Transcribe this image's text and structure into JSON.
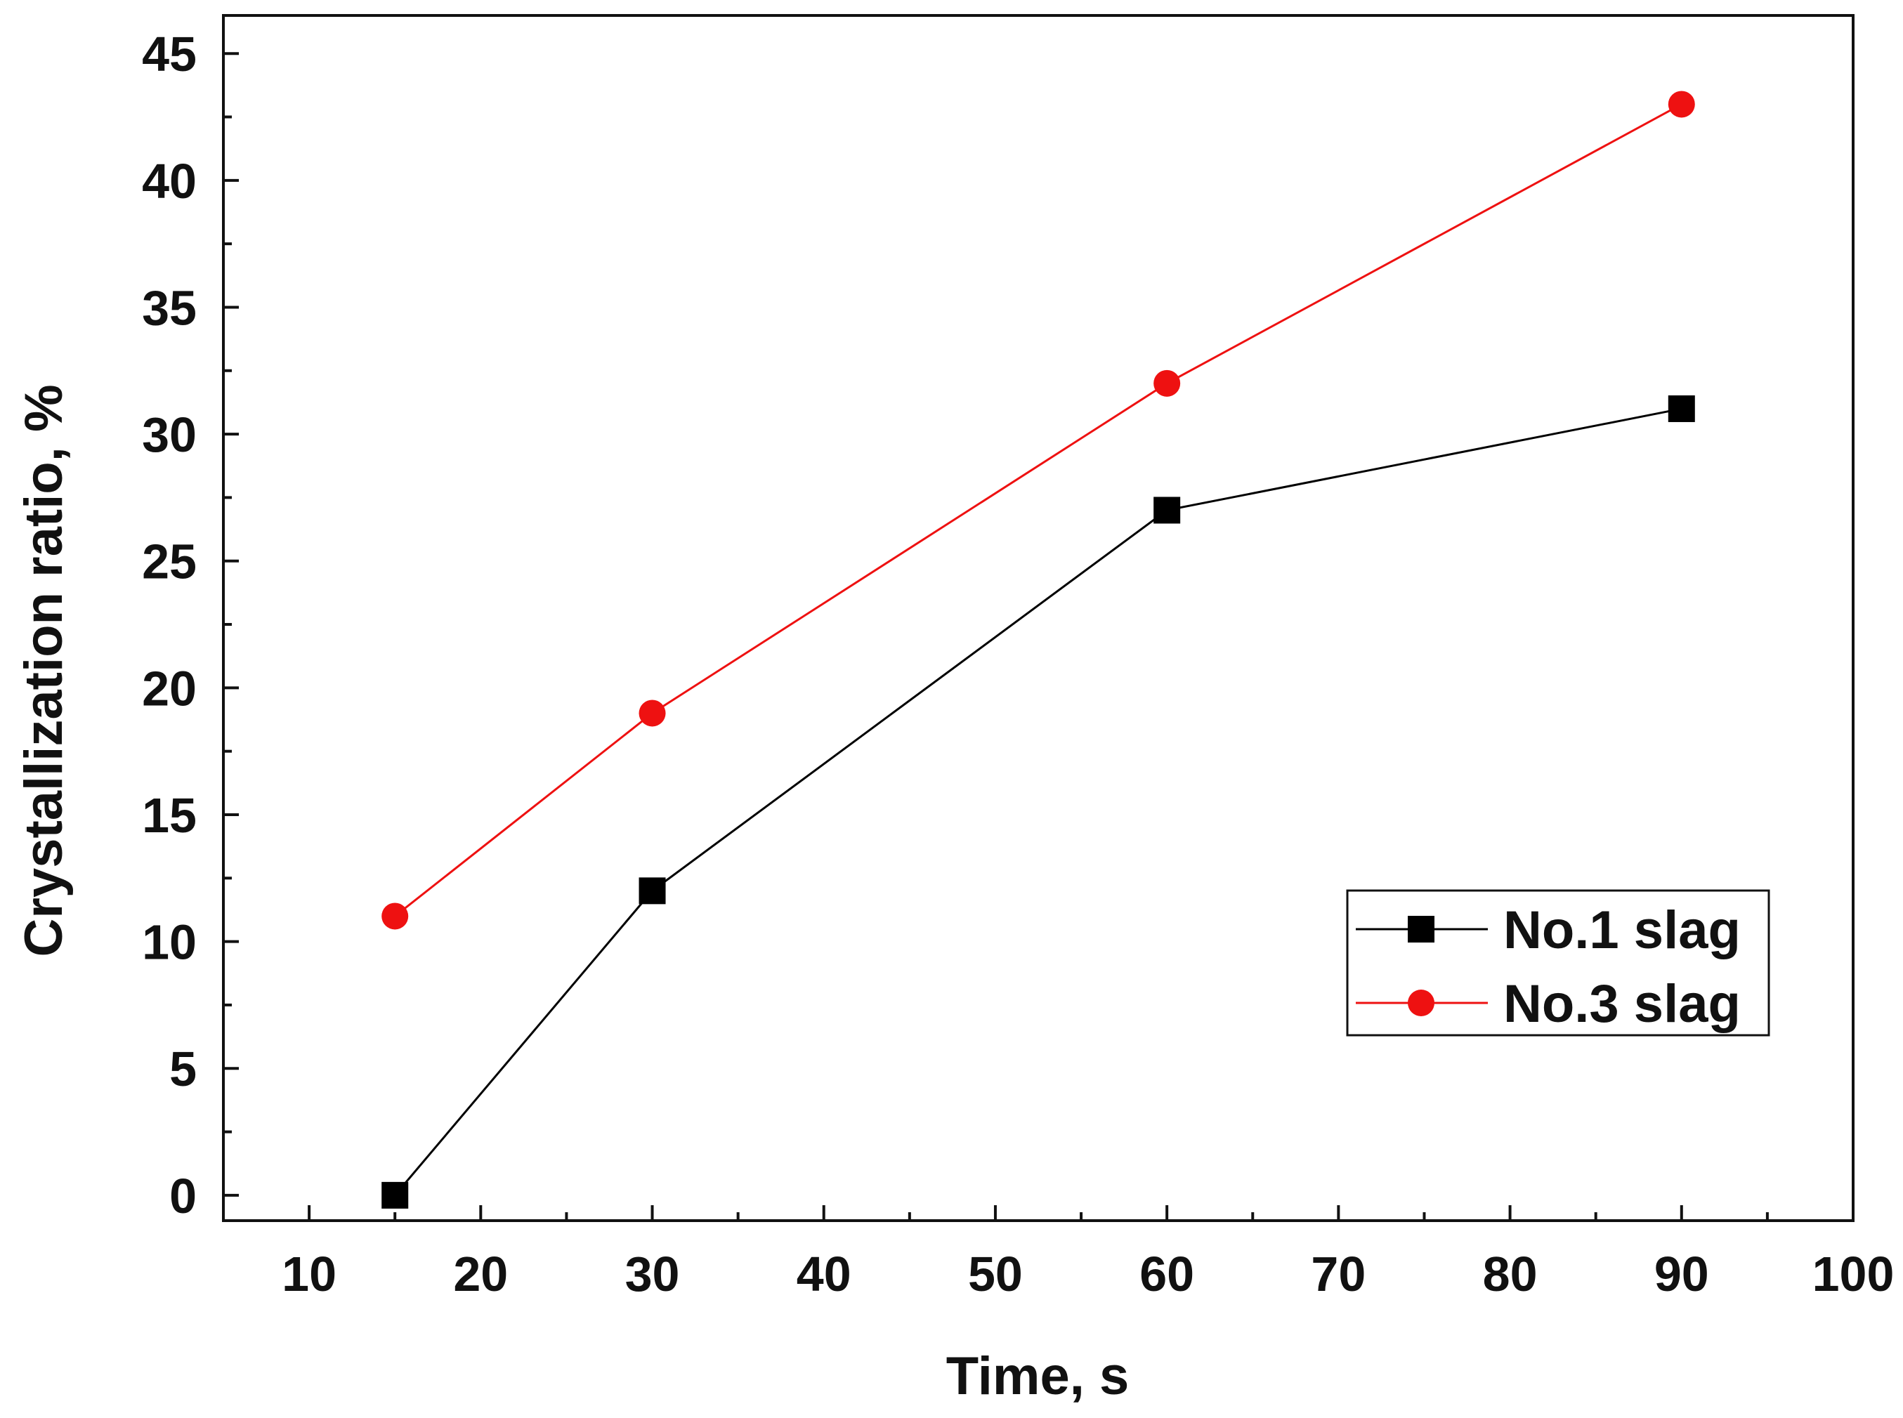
{
  "chart_data": {
    "type": "line",
    "title": "",
    "xlabel": "Time, s",
    "ylabel": "Crystallization ratio, %",
    "xlim": [
      5,
      100
    ],
    "ylim": [
      -1,
      46.5
    ],
    "xticks": [
      10,
      20,
      30,
      40,
      50,
      60,
      70,
      80,
      90,
      100
    ],
    "yticks": [
      0,
      5,
      10,
      15,
      20,
      25,
      30,
      35,
      40,
      45
    ],
    "grid": false,
    "legend_position": "lower-right",
    "series": [
      {
        "name": "No.1 slag",
        "color": "#000000",
        "marker": "square",
        "x": [
          15,
          30,
          60,
          90
        ],
        "y": [
          0,
          12,
          27,
          31
        ]
      },
      {
        "name": "No.3 slag",
        "color": "#ee1111",
        "marker": "circle",
        "x": [
          15,
          30,
          60,
          90
        ],
        "y": [
          11,
          19,
          32,
          43
        ]
      }
    ]
  }
}
